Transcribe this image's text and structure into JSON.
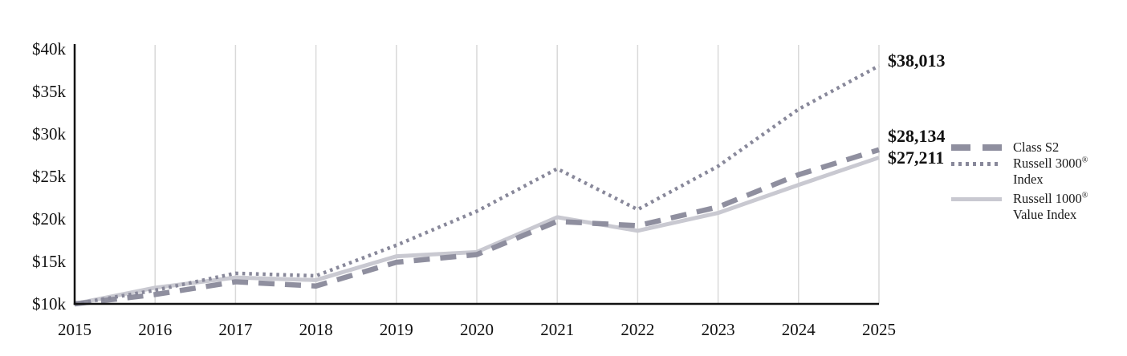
{
  "chart_data": {
    "type": "line",
    "title": "",
    "xlabel": "",
    "ylabel": "",
    "x": [
      2015,
      2016,
      2017,
      2018,
      2019,
      2020,
      2021,
      2022,
      2023,
      2024,
      2025
    ],
    "x_tick_labels": [
      "2015",
      "2016",
      "2017",
      "2018",
      "2019",
      "2020",
      "2021",
      "2022",
      "2023",
      "2024",
      "2025"
    ],
    "y_tick_labels": [
      "$10k",
      "$15k",
      "$20k",
      "$25k",
      "$30k",
      "$35k",
      "$40k"
    ],
    "ylim": [
      10000,
      40000
    ],
    "grid": "vertical-only",
    "legend_position": "right",
    "series": [
      {
        "name": "Class S2",
        "style": "dashed",
        "color": "#8F8F9F",
        "end_label": "$28,134",
        "values": [
          10000,
          11100,
          12600,
          12100,
          14900,
          15800,
          19700,
          19200,
          21400,
          25200,
          28134
        ]
      },
      {
        "name": "Russell 3000® Index",
        "style": "dotted",
        "color": "#88889A",
        "end_label": "$38,013",
        "values": [
          10000,
          11600,
          13600,
          13300,
          16900,
          20900,
          25900,
          21100,
          26200,
          32900,
          38013
        ]
      },
      {
        "name": "Russell 1000® Value Index",
        "style": "solid",
        "color": "#C9C9D1",
        "end_label": "$27,211",
        "values": [
          10000,
          11900,
          13100,
          12800,
          15600,
          16100,
          20200,
          18600,
          20700,
          24000,
          27211
        ]
      }
    ]
  },
  "legend": {
    "items": [
      {
        "line1": "Class S2",
        "sup": "",
        "line2": ""
      },
      {
        "line1": "Russell 3000",
        "sup": "®",
        "line2": "Index"
      },
      {
        "line1": "Russell 1000",
        "sup": "®",
        "line2": "Value Index"
      }
    ]
  },
  "colors": {
    "axis": "#111111",
    "gridline": "#D9D9D9",
    "dashed_line": "#8F8F9F",
    "dotted_line": "#88889A",
    "solid_line": "#C9C9D1"
  }
}
